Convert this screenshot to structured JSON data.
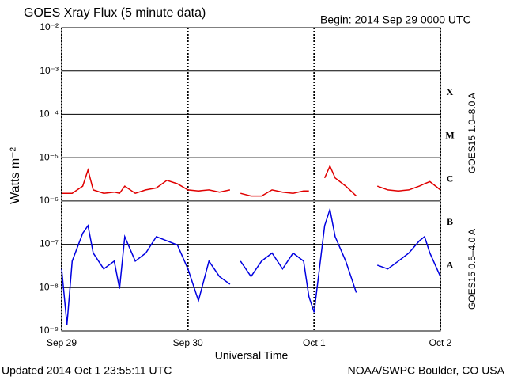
{
  "chart_data": {
    "type": "line",
    "title": "GOES Xray Flux (5 minute data)",
    "subtitle": "Begin:  2014 Sep 29 0000 UTC",
    "xlabel": "Universal Time",
    "ylabel": "Watts m⁻²",
    "footer_left": "Updated 2014 Oct  1 23:55:11 UTC",
    "footer_right": "NOAA/SWPC Boulder, CO USA",
    "ylog": true,
    "grid": true,
    "legend": "right",
    "annotations": [
      "X",
      "M",
      "C",
      "B",
      "A"
    ],
    "x": [
      0,
      1,
      2,
      4,
      5,
      6,
      8,
      10,
      11,
      12,
      14,
      16,
      18,
      20,
      22,
      24,
      26,
      28,
      30,
      32,
      33,
      34,
      36,
      38,
      40,
      42,
      44,
      46,
      47,
      48,
      50,
      51,
      52,
      54,
      56,
      58,
      60,
      62,
      64,
      66,
      68,
      69,
      70,
      72
    ],
    "xlim": [
      0,
      72
    ],
    "xticks": [
      {
        "value": 0,
        "label": "Sep 29"
      },
      {
        "value": 24,
        "label": "Sep 30"
      },
      {
        "value": 48,
        "label": "Oct 1"
      },
      {
        "value": 72,
        "label": "Oct 2"
      }
    ],
    "ylim": [
      1e-09,
      0.01
    ],
    "yticks": [
      {
        "value": 1e-09,
        "label": "10⁻⁹"
      },
      {
        "value": 1e-08,
        "label": "10⁻⁸"
      },
      {
        "value": 1e-07,
        "label": "10⁻⁷"
      },
      {
        "value": 1e-06,
        "label": "10⁻⁶"
      },
      {
        "value": 1e-05,
        "label": "10⁻⁵"
      },
      {
        "value": 0.0001,
        "label": "10⁻⁴"
      },
      {
        "value": 0.001,
        "label": "10⁻³"
      },
      {
        "value": 0.01,
        "label": "10⁻²"
      }
    ],
    "series": [
      {
        "name": "GOES15 1.0–8.0 A",
        "color": "#e00000",
        "values": [
          1.5e-06,
          1.5e-06,
          1.5e-06,
          2.2e-06,
          5.2e-06,
          1.8e-06,
          1.5e-06,
          1.6e-06,
          1.5e-06,
          2.2e-06,
          1.5e-06,
          1.8e-06,
          2e-06,
          3e-06,
          2.5e-06,
          1.8e-06,
          1.7e-06,
          1.8e-06,
          1.6e-06,
          1.8e-06,
          null,
          1.5e-06,
          1.3e-06,
          1.3e-06,
          1.8e-06,
          1.6e-06,
          1.5e-06,
          1.7e-06,
          1.7e-06,
          null,
          3.4e-06,
          6.4e-06,
          3.4e-06,
          2.2e-06,
          1.3e-06,
          null,
          2.2e-06,
          1.8e-06,
          1.7e-06,
          1.8e-06,
          2.2e-06,
          2.5e-06,
          2.8e-06,
          1.8e-06
        ]
      },
      {
        "name": "GOES15 0.5–4.0 A",
        "color": "#0000e0",
        "values": [
          2.7e-08,
          1.4e-09,
          4.1e-08,
          1.8e-07,
          2.7e-07,
          6.3e-08,
          2.7e-08,
          4.1e-08,
          9.5e-09,
          1.5e-07,
          4.1e-08,
          6.3e-08,
          1.5e-07,
          1.2e-07,
          9.6e-08,
          2.7e-08,
          5e-09,
          4.1e-08,
          1.8e-08,
          1.2e-08,
          null,
          4.1e-08,
          1.8e-08,
          4.1e-08,
          6.3e-08,
          2.7e-08,
          6.3e-08,
          4.1e-08,
          6.2e-09,
          2.7e-09,
          2.7e-07,
          6.4e-07,
          1.5e-07,
          4.1e-08,
          7.7e-09,
          null,
          3.3e-08,
          2.7e-08,
          4.1e-08,
          6.3e-08,
          1.2e-07,
          1.5e-07,
          6.3e-08,
          1.8e-08
        ]
      }
    ]
  }
}
